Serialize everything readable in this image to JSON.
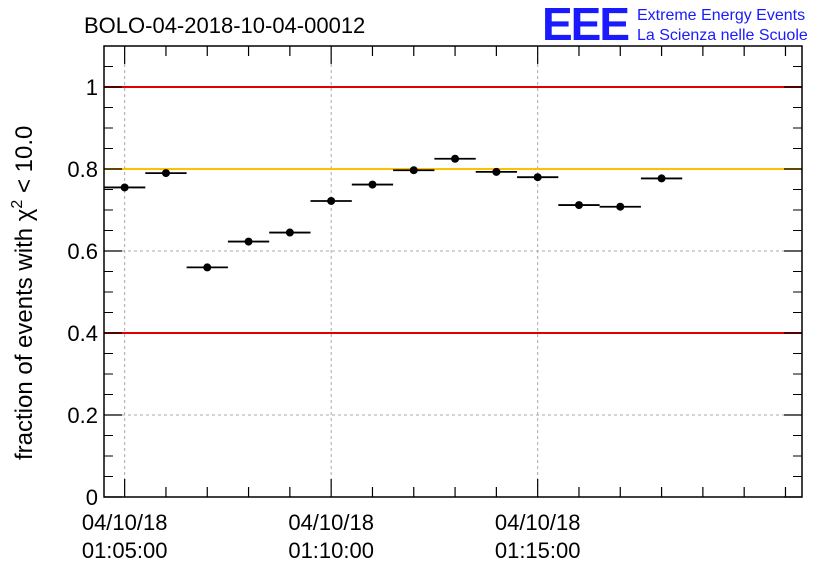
{
  "chart_data": {
    "type": "scatter",
    "title": "BOLO-04-2018-10-04-00012",
    "ylabel_prefix": "fraction of events with ",
    "ylabel_chi": "χ",
    "ylabel_sup": "2",
    "ylabel_suffix": " < 10.0",
    "xlabel": "",
    "ylim": [
      0,
      1.1
    ],
    "xlim": [
      "01:04:30",
      "01:21:24"
    ],
    "grid": true,
    "yticks": [
      {
        "value": 0,
        "label": "0"
      },
      {
        "value": 0.2,
        "label": "0.2"
      },
      {
        "value": 0.4,
        "label": "0.4"
      },
      {
        "value": 0.6,
        "label": "0.6"
      },
      {
        "value": 0.8,
        "label": "0.8"
      },
      {
        "value": 1,
        "label": "1"
      }
    ],
    "xticks": [
      {
        "time": "01:05:00",
        "date": "04/10/18",
        "clock": "01:05:00"
      },
      {
        "time": "01:10:00",
        "date": "04/10/18",
        "clock": "01:10:00"
      },
      {
        "time": "01:15:00",
        "date": "04/10/18",
        "clock": "01:15:00"
      }
    ],
    "bin_width_s": 60,
    "points": [
      {
        "x": "01:05:00",
        "y": 0.755
      },
      {
        "x": "01:06:00",
        "y": 0.79
      },
      {
        "x": "01:07:00",
        "y": 0.56
      },
      {
        "x": "01:08:00",
        "y": 0.623
      },
      {
        "x": "01:09:00",
        "y": 0.645
      },
      {
        "x": "01:10:00",
        "y": 0.722
      },
      {
        "x": "01:11:00",
        "y": 0.762
      },
      {
        "x": "01:12:00",
        "y": 0.797
      },
      {
        "x": "01:13:00",
        "y": 0.825
      },
      {
        "x": "01:14:00",
        "y": 0.793
      },
      {
        "x": "01:15:00",
        "y": 0.78
      },
      {
        "x": "01:16:00",
        "y": 0.712
      },
      {
        "x": "01:17:00",
        "y": 0.708
      },
      {
        "x": "01:18:00",
        "y": 0.777
      }
    ],
    "reference_lines": [
      {
        "y": 1.0,
        "color": "#e00000"
      },
      {
        "y": 0.8,
        "color": "#ffc000"
      },
      {
        "y": 0.4,
        "color": "#e00000"
      }
    ]
  },
  "logo": {
    "mark": "EEE",
    "line1": "Extreme Energy Events",
    "line2": "La Scienza nelle Scuole",
    "color": "#1a1aff"
  }
}
